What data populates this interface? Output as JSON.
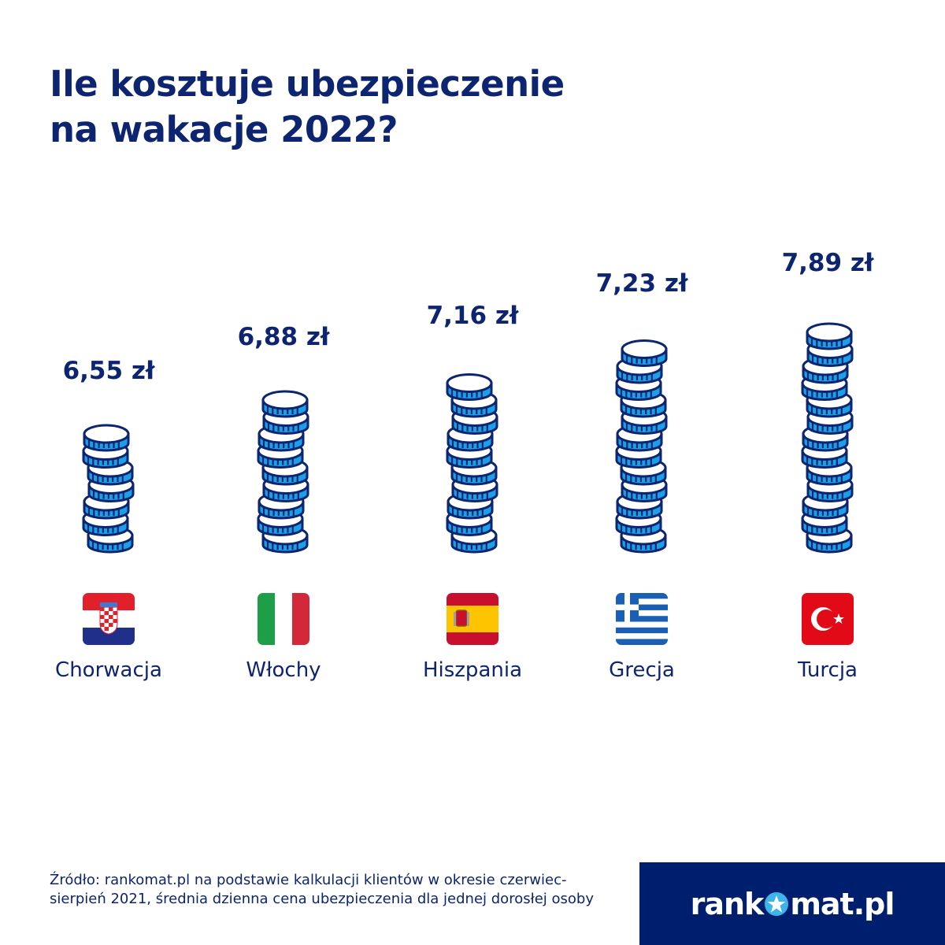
{
  "title_line1": "Ile kosztuje ubezpieczenie",
  "title_line2": "na wakacje 2022?",
  "chart_data": {
    "type": "bar",
    "title": "Ile kosztuje ubezpieczenie na wakacje 2022?",
    "categories": [
      "Chorwacja",
      "Włochy",
      "Hiszpania",
      "Grecja",
      "Turcja"
    ],
    "values": [
      6.55,
      6.88,
      7.16,
      7.23,
      7.89
    ],
    "value_labels": [
      "6,55 zł",
      "6,88 zł",
      "7,16 zł",
      "7,23 zł",
      "7,89 zł"
    ],
    "coins": [
      7,
      9,
      10,
      12,
      13
    ],
    "flags": [
      "croatia-flag",
      "italy-flag",
      "spain-flag",
      "greece-flag",
      "turkey-flag"
    ],
    "unit": "zł"
  },
  "colors": {
    "navy": "#0d2470",
    "coin_blue": "#1aa0e6",
    "logo_bg": "#001e6e"
  },
  "source": "Źródło: rankomat.pl na podstawie kalkulacji klientów w okresie czerwiec-sierpień 2021, średnia dzienna cena ubezpieczenia dla jednej dorosłej osoby",
  "logo": {
    "left": "rank",
    "right": "mat.pl"
  }
}
